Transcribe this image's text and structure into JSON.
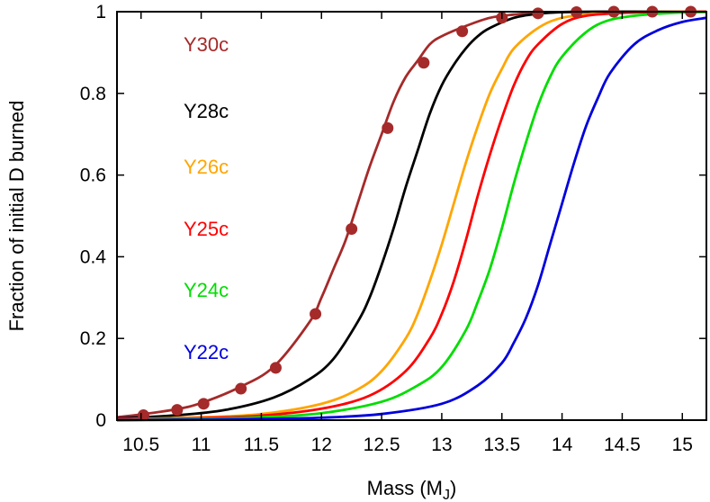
{
  "chart_data": {
    "type": "line",
    "xlabel": "Mass (M",
    "xlabel_sub": "J",
    "xlabel_close": ")",
    "ylabel": "Fraction of initial D burned",
    "xlim": [
      10.3,
      15.2
    ],
    "ylim": [
      0,
      1
    ],
    "x_ticks": [
      10.5,
      11,
      11.5,
      12,
      12.5,
      13,
      13.5,
      14,
      14.5,
      15
    ],
    "x_tick_labels": [
      "10.5",
      "11",
      "11.5",
      "12",
      "12.5",
      "13",
      "13.5",
      "14",
      "14.5",
      "15"
    ],
    "y_ticks": [
      0,
      0.2,
      0.4,
      0.6,
      0.8,
      1
    ],
    "y_tick_labels": [
      "0",
      "0.2",
      "0.4",
      "0.6",
      "0.8",
      "1"
    ],
    "grid": false,
    "series": [
      {
        "name": "Y30c",
        "color": "#a52a2a",
        "markers": true,
        "curve": {
          "x": [
            10.3,
            10.5,
            10.8,
            11.0,
            11.3,
            11.6,
            11.9,
            12.0,
            12.1,
            12.2,
            12.3,
            12.4,
            12.5,
            12.6,
            12.7,
            12.8,
            12.9,
            13.0,
            13.2,
            13.4,
            13.6,
            13.8,
            14.0,
            14.5,
            15.2
          ],
          "y": [
            0.007,
            0.014,
            0.027,
            0.042,
            0.078,
            0.13,
            0.24,
            0.3,
            0.37,
            0.44,
            0.53,
            0.62,
            0.7,
            0.78,
            0.84,
            0.88,
            0.92,
            0.94,
            0.965,
            0.985,
            0.993,
            0.997,
            0.999,
            1.0,
            1.0
          ]
        },
        "points": {
          "x": [
            10.52,
            10.8,
            11.02,
            11.33,
            11.62,
            11.95,
            12.25,
            12.55,
            12.85,
            13.17,
            13.5,
            13.8,
            14.12,
            14.43,
            14.75,
            15.07
          ],
          "y": [
            0.012,
            0.025,
            0.04,
            0.077,
            0.128,
            0.26,
            0.468,
            0.715,
            0.875,
            0.952,
            0.985,
            0.996,
            0.999,
            1.0,
            1.0,
            1.0
          ]
        }
      },
      {
        "name": "Y28c",
        "color": "#000000",
        "curve": {
          "x": [
            10.3,
            10.8,
            11.2,
            11.6,
            11.9,
            12.1,
            12.3,
            12.4,
            12.5,
            12.6,
            12.7,
            12.8,
            12.9,
            13.0,
            13.1,
            13.2,
            13.3,
            13.4,
            13.6,
            13.8,
            14.0,
            14.3,
            15.2
          ],
          "y": [
            0.004,
            0.012,
            0.025,
            0.055,
            0.1,
            0.15,
            0.24,
            0.3,
            0.38,
            0.47,
            0.57,
            0.66,
            0.75,
            0.82,
            0.87,
            0.91,
            0.94,
            0.96,
            0.985,
            0.995,
            0.999,
            1.0,
            1.0
          ]
        }
      },
      {
        "name": "Y26c",
        "color": "#ffa500",
        "curve": {
          "x": [
            10.3,
            11.0,
            11.5,
            12.0,
            12.3,
            12.5,
            12.7,
            12.8,
            12.9,
            13.0,
            13.1,
            13.2,
            13.3,
            13.4,
            13.5,
            13.6,
            13.8,
            14.0,
            14.3,
            14.6,
            15.2
          ],
          "y": [
            0.002,
            0.007,
            0.015,
            0.04,
            0.075,
            0.12,
            0.2,
            0.26,
            0.34,
            0.43,
            0.53,
            0.63,
            0.72,
            0.8,
            0.86,
            0.91,
            0.96,
            0.985,
            0.996,
            0.999,
            1.0
          ]
        }
      },
      {
        "name": "Y25c",
        "color": "#ff0000",
        "curve": {
          "x": [
            10.3,
            11.0,
            11.5,
            12.0,
            12.4,
            12.7,
            12.9,
            13.0,
            13.1,
            13.2,
            13.3,
            13.4,
            13.5,
            13.6,
            13.7,
            13.8,
            14.0,
            14.2,
            14.5,
            14.8,
            15.2
          ],
          "y": [
            0.001,
            0.005,
            0.011,
            0.028,
            0.06,
            0.12,
            0.2,
            0.26,
            0.34,
            0.44,
            0.55,
            0.65,
            0.74,
            0.82,
            0.88,
            0.92,
            0.97,
            0.99,
            0.997,
            0.999,
            1.0
          ]
        }
      },
      {
        "name": "Y24c",
        "color": "#00dd00",
        "curve": {
          "x": [
            10.3,
            11.0,
            11.5,
            12.0,
            12.5,
            12.8,
            13.0,
            13.2,
            13.3,
            13.4,
            13.5,
            13.6,
            13.7,
            13.8,
            13.9,
            14.0,
            14.2,
            14.4,
            14.7,
            15.0,
            15.2
          ],
          "y": [
            0.0,
            0.003,
            0.007,
            0.017,
            0.045,
            0.085,
            0.13,
            0.22,
            0.29,
            0.37,
            0.47,
            0.58,
            0.68,
            0.77,
            0.84,
            0.89,
            0.95,
            0.98,
            0.993,
            0.998,
            0.999
          ]
        }
      },
      {
        "name": "Y22c",
        "color": "#0000dd",
        "curve": {
          "x": [
            10.3,
            11.0,
            11.5,
            12.0,
            12.5,
            13.0,
            13.3,
            13.5,
            13.6,
            13.7,
            13.8,
            13.9,
            14.0,
            14.1,
            14.2,
            14.3,
            14.4,
            14.6,
            14.8,
            15.0,
            15.2
          ],
          "y": [
            0.0,
            0.001,
            0.003,
            0.006,
            0.015,
            0.04,
            0.085,
            0.14,
            0.19,
            0.25,
            0.33,
            0.43,
            0.53,
            0.63,
            0.72,
            0.79,
            0.85,
            0.92,
            0.955,
            0.975,
            0.985
          ]
        }
      }
    ]
  }
}
